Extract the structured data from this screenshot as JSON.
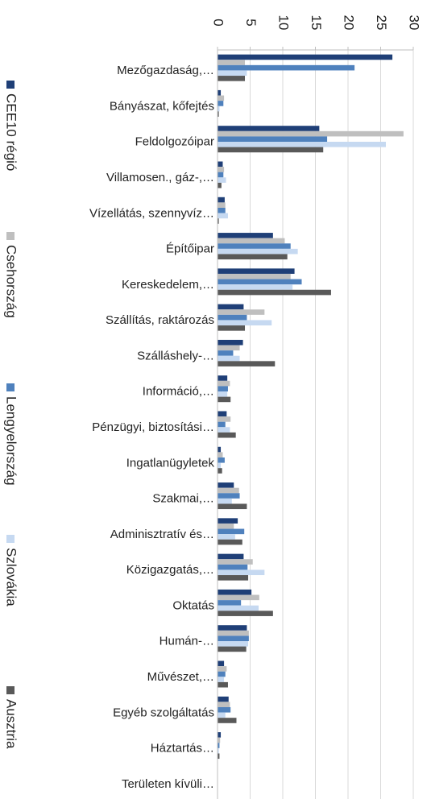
{
  "chart_data": {
    "type": "bar",
    "orientation": "horizontal",
    "categories": [
      "Mezőgazdaság,…",
      "Bányászat, kőfejtés",
      "Feldolgozóipar",
      "Villamosen., gáz-,…",
      "Vízellátás, szennyvíz…",
      "Építőipar",
      "Kereskedelem,…",
      "Szállítás, raktározás",
      "Szálláshely-…",
      "Információ,…",
      "Pénzügyi, biztosítási…",
      "Ingatlanügyletek",
      "Szakmai,…",
      "Adminisztratív és…",
      "Közigazgatás,…",
      "Oktatás",
      "Humán-…",
      "Művészet,…",
      "Egyéb szolgáltatás",
      "Háztartás…",
      "Területen kívüli…"
    ],
    "series": [
      {
        "name": "CEE10 régió",
        "color": "#1f3f77",
        "values": [
          26.8,
          0.5,
          15.6,
          0.8,
          1.1,
          8.5,
          11.8,
          4.0,
          3.9,
          1.5,
          1.4,
          0.5,
          2.5,
          3.1,
          4.0,
          5.2,
          4.5,
          1.0,
          1.7,
          0.5,
          0
        ]
      },
      {
        "name": "Csehország",
        "color": "#bfbfbf",
        "values": [
          4.2,
          1.0,
          28.5,
          1.0,
          1.2,
          10.3,
          11.2,
          7.2,
          3.4,
          1.9,
          2.0,
          0.8,
          3.3,
          2.5,
          5.4,
          6.4,
          4.8,
          1.4,
          1.9,
          0.4,
          0
        ]
      },
      {
        "name": "Lengyelország",
        "color": "#4f81bd",
        "values": [
          21.0,
          0.9,
          16.8,
          0.9,
          1.2,
          11.2,
          12.9,
          4.5,
          2.4,
          1.6,
          1.2,
          1.1,
          3.4,
          4.1,
          4.6,
          3.6,
          4.8,
          1.2,
          2.0,
          0.3,
          0
        ]
      },
      {
        "name": "Szlovákia",
        "color": "#c6d9f1",
        "values": [
          4.5,
          0.3,
          25.8,
          1.3,
          1.6,
          12.3,
          11.5,
          8.3,
          3.4,
          1.5,
          1.9,
          0.5,
          2.2,
          2.7,
          7.2,
          6.3,
          4.7,
          1.0,
          1.2,
          0.2,
          0
        ]
      },
      {
        "name": "Ausztria",
        "color": "#595959",
        "values": [
          4.2,
          0.2,
          16.2,
          0.6,
          0.2,
          10.7,
          17.4,
          4.2,
          8.8,
          2.0,
          2.8,
          0.7,
          4.5,
          3.8,
          4.7,
          8.5,
          4.4,
          1.6,
          2.9,
          0.3,
          0
        ]
      }
    ],
    "xlim": [
      0,
      30
    ],
    "xticks": [
      0,
      5,
      10,
      15,
      20,
      25,
      30
    ],
    "grid": true
  }
}
